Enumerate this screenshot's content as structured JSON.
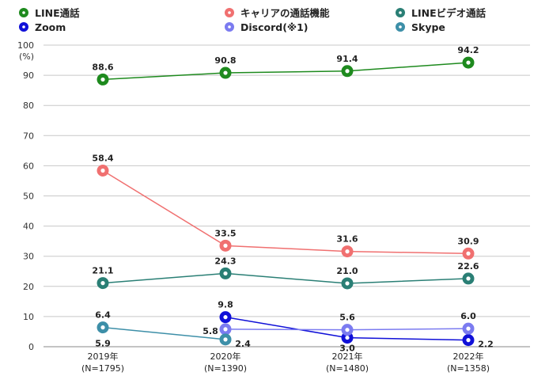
{
  "chart_data": {
    "type": "line",
    "title": "",
    "ylabel": "(%)",
    "ylim": [
      0,
      100
    ],
    "yticks": [
      0,
      10,
      20,
      30,
      40,
      50,
      60,
      70,
      80,
      90,
      100
    ],
    "grid": true,
    "legend_position": "top",
    "categories": [
      {
        "year": "2019年",
        "n": "(N=1795)"
      },
      {
        "year": "2020年",
        "n": "(N=1390)"
      },
      {
        "year": "2021年",
        "n": "(N=1480)"
      },
      {
        "year": "2022年",
        "n": "(N=1358)"
      }
    ],
    "series": [
      {
        "name": "LINE通話",
        "color": "#1e8a1e",
        "values": [
          88.6,
          90.8,
          91.4,
          94.2
        ],
        "labels": [
          "88.6",
          "90.8",
          "91.4",
          "94.2"
        ]
      },
      {
        "name": "キャリアの通話機能",
        "color": "#f07070",
        "values": [
          58.4,
          33.5,
          31.6,
          30.9
        ],
        "labels": [
          "58.4",
          "33.5",
          "31.6",
          "30.9"
        ]
      },
      {
        "name": "LINEビデオ通話",
        "color": "#2a7f75",
        "values": [
          21.1,
          24.3,
          21.0,
          22.6
        ],
        "labels": [
          "21.1",
          "24.3",
          "21.0",
          "22.6"
        ]
      },
      {
        "name": "Zoom",
        "color": "#1010d8",
        "values": [
          null,
          9.8,
          3.0,
          2.2
        ],
        "labels": [
          null,
          "9.8",
          "3.0",
          "2.2"
        ]
      },
      {
        "name": "Discord(※1)",
        "color": "#7b7bf0",
        "values": [
          null,
          5.8,
          5.6,
          6.0
        ],
        "labels": [
          null,
          "5.8",
          "5.6",
          "6.0"
        ]
      },
      {
        "name": "Skype",
        "color": "#3d8fa8",
        "values": [
          6.4,
          2.4,
          null,
          null
        ],
        "labels": [
          "6.4",
          "2.4",
          null,
          null
        ]
      }
    ],
    "extra_labels": [
      {
        "series": "Discord(※1)",
        "index": 0,
        "text": "5.9"
      }
    ]
  }
}
